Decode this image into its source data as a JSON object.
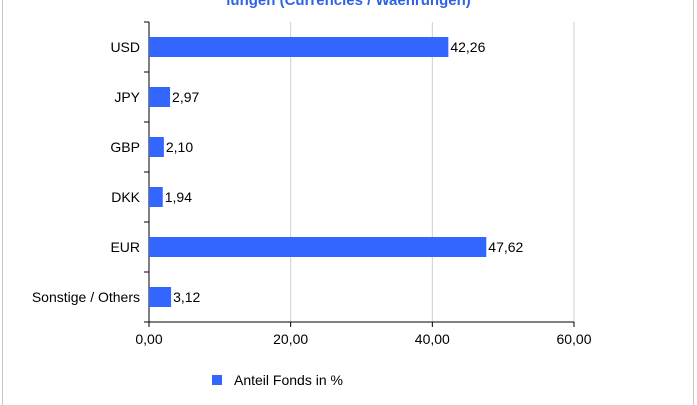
{
  "page": {
    "title_fragment": "lungen (Currencies / Waehrungen)"
  },
  "colors": {
    "bar": "#3366ff",
    "title": "#2f63e6",
    "axis": "#000000",
    "grid": "#cfcfcf"
  },
  "chart_data": {
    "type": "bar",
    "orientation": "horizontal",
    "categories": [
      "USD",
      "JPY",
      "GBP",
      "DKK",
      "EUR",
      "Sonstige / Others"
    ],
    "series": [
      {
        "name": "Anteil Fonds in %",
        "values": [
          42.26,
          2.97,
          2.1,
          1.94,
          47.62,
          3.12
        ]
      }
    ],
    "value_labels": [
      "42,26",
      "2,97",
      "2,10",
      "1,94",
      "47,62",
      "3,12"
    ],
    "x_ticks": [
      0,
      20,
      40,
      60
    ],
    "x_tick_labels": [
      "0,00",
      "20,00",
      "40,00",
      "60,00"
    ],
    "xlim": [
      0,
      60
    ],
    "xlabel": "",
    "ylabel": "",
    "grid": "vertical",
    "legend_position": "bottom"
  },
  "legend": {
    "label": "Anteil Fonds in %"
  }
}
